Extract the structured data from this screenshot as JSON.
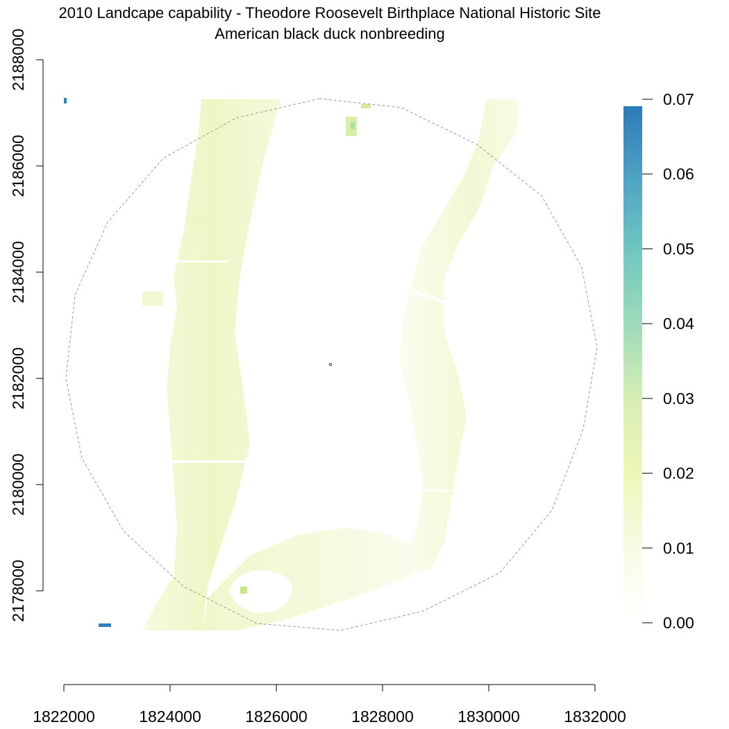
{
  "title": {
    "line1": "2010 Landcape capability - Theodore Roosevelt Birthplace National Historic Site",
    "line2": "American black duck nonbreeding"
  },
  "x_axis": {
    "range": [
      1822000,
      1832000
    ],
    "ticks": [
      1822000,
      1824000,
      1826000,
      1828000,
      1830000,
      1832000
    ],
    "tick_labels": [
      "1822000",
      "1824000",
      "1826000",
      "1828000",
      "1830000",
      "1832000"
    ]
  },
  "y_axis": {
    "range": [
      2178000,
      2188000
    ],
    "ticks": [
      2178000,
      2180000,
      2182000,
      2184000,
      2186000,
      2188000
    ],
    "tick_labels": [
      "2178000",
      "2180000",
      "2182000",
      "2184000",
      "2186000",
      "2188000"
    ]
  },
  "legend": {
    "range": [
      0.0,
      0.07
    ],
    "ticks": [
      0.0,
      0.01,
      0.02,
      0.03,
      0.04,
      0.05,
      0.06,
      0.07
    ],
    "tick_labels": [
      "0.00",
      "0.01",
      "0.02",
      "0.03",
      "0.04",
      "0.05",
      "0.06",
      "0.07"
    ],
    "color_stops": [
      {
        "value": 0.0,
        "color": "#ffffff"
      },
      {
        "value": 0.01,
        "color": "#f7fbe6"
      },
      {
        "value": 0.02,
        "color": "#eef7b6"
      },
      {
        "value": 0.03,
        "color": "#d8efb3"
      },
      {
        "value": 0.04,
        "color": "#9fdcb9"
      },
      {
        "value": 0.05,
        "color": "#72c8bf"
      },
      {
        "value": 0.06,
        "color": "#4ea4c4"
      },
      {
        "value": 0.07,
        "color": "#2b7bb9"
      }
    ]
  },
  "colors": {
    "boundary": "#9a9a9a",
    "high_value": "#2e81ba",
    "mid_value": "#a9dfa8"
  }
}
